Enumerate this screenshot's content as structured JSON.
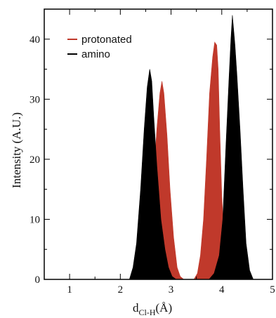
{
  "chart_data": {
    "type": "area",
    "xlabel_main": "d",
    "xlabel_sub": "Cl-H",
    "xlabel_unit": "(Å)",
    "ylabel": "Intensity (A.U.)",
    "xlim": [
      0.5,
      5.0
    ],
    "ylim": [
      0,
      45
    ],
    "xticks": [
      1,
      2,
      3,
      4,
      5
    ],
    "yticks": [
      0,
      10,
      20,
      30,
      40
    ],
    "grid": false,
    "legend_position": "top-left",
    "series": [
      {
        "name": "protonated",
        "color": "#c0392b",
        "x": [
          2.4,
          2.5,
          2.58,
          2.65,
          2.72,
          2.78,
          2.82,
          2.86,
          2.92,
          2.98,
          3.05,
          3.12,
          3.18,
          3.25,
          3.45,
          3.52,
          3.58,
          3.64,
          3.7,
          3.76,
          3.82,
          3.86,
          3.9,
          3.93,
          3.96,
          4.0,
          4.05,
          4.12,
          4.2
        ],
        "y": [
          0,
          2,
          7,
          16,
          25,
          31,
          33,
          31,
          24,
          15,
          7,
          2,
          0.5,
          0,
          0,
          1,
          4,
          10,
          20,
          31,
          37,
          39.5,
          39,
          35,
          25,
          14,
          6,
          1.5,
          0
        ]
      },
      {
        "name": "amino",
        "color": "#000000",
        "x": [
          2.18,
          2.25,
          2.32,
          2.4,
          2.47,
          2.53,
          2.58,
          2.62,
          2.66,
          2.72,
          2.8,
          2.88,
          2.95,
          3.02,
          3.1,
          3.75,
          3.85,
          3.95,
          4.02,
          4.08,
          4.14,
          4.18,
          4.21,
          4.23,
          4.26,
          4.3,
          4.36,
          4.42,
          4.48,
          4.55,
          4.62
        ],
        "y": [
          0,
          2,
          6,
          15,
          25,
          32,
          35,
          33,
          27,
          19,
          10,
          5,
          2,
          0.5,
          0,
          0,
          1,
          4,
          10,
          22,
          33,
          40,
          44,
          42,
          39,
          34,
          25,
          15,
          6,
          1.5,
          0
        ]
      }
    ]
  }
}
